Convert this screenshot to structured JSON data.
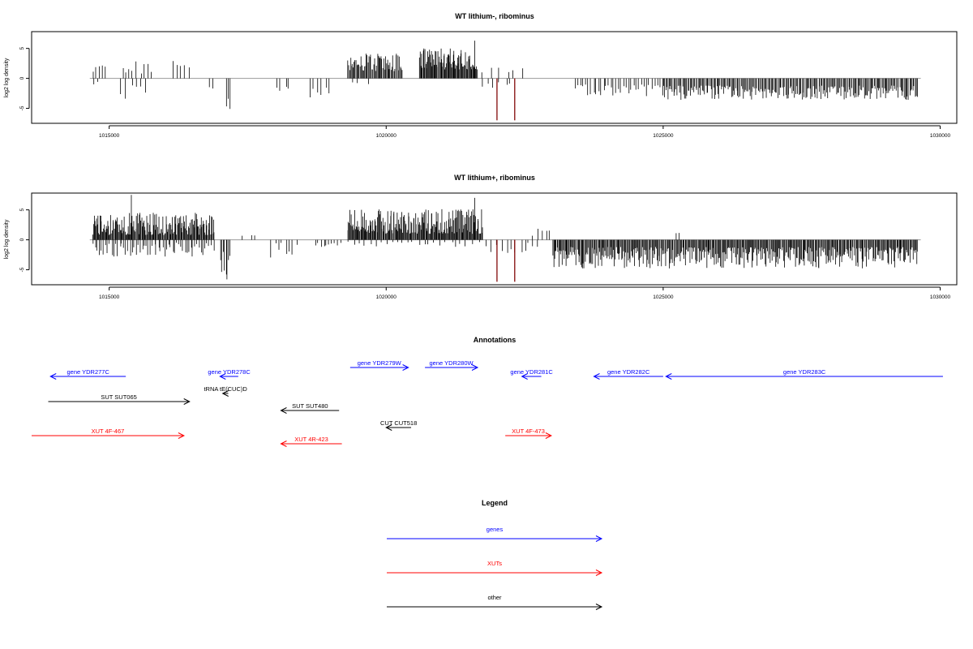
{
  "colors": {
    "gene": "#0000ff",
    "xut": "#ff0000",
    "other": "#000000",
    "bar": "#000000",
    "highlight": "#8b1a1a"
  },
  "chart_data": [
    {
      "type": "bar",
      "title": "WT lithium-, ribominus",
      "ylabel": "log2 log density",
      "xlim": [
        1013600,
        1030300
      ],
      "ylim": [
        -7.5,
        7.8
      ],
      "xticks": [
        1015000,
        1020000,
        1025000,
        1030000
      ],
      "xtick_labels": [
        "1015000",
        "1020000",
        "1025000",
        "1030000"
      ],
      "yticks": [
        -5,
        0,
        5
      ],
      "ytick_labels": [
        "-5",
        "0",
        "5"
      ],
      "baseline_range": [
        1014650,
        1029650
      ],
      "segments": [
        {
          "x0": 1014700,
          "x1": 1014950,
          "n": 5,
          "lo": 1.0,
          "hi": 2.4,
          "sign": 1
        },
        {
          "x0": 1014700,
          "x1": 1014800,
          "n": 2,
          "lo": 0.5,
          "hi": 1.2,
          "sign": -1
        },
        {
          "x0": 1015200,
          "x1": 1015800,
          "n": 9,
          "lo": 0.8,
          "hi": 3.2,
          "sign": 1
        },
        {
          "x0": 1015200,
          "x1": 1015700,
          "n": 6,
          "lo": 1.0,
          "hi": 3.8,
          "sign": -1
        },
        {
          "x0": 1016100,
          "x1": 1016500,
          "n": 5,
          "lo": 1.5,
          "hi": 3.6,
          "sign": 1
        },
        {
          "x0": 1016800,
          "x1": 1016900,
          "n": 2,
          "lo": 1.0,
          "hi": 2.0,
          "sign": -1
        },
        {
          "x0": 1017100,
          "x1": 1017200,
          "n": 3,
          "lo": 3.0,
          "hi": 5.2,
          "sign": -1
        },
        {
          "x0": 1018000,
          "x1": 1018300,
          "n": 4,
          "lo": 1.0,
          "hi": 2.2,
          "sign": -1
        },
        {
          "x0": 1018600,
          "x1": 1019000,
          "n": 6,
          "lo": 1.5,
          "hi": 3.6,
          "sign": -1
        },
        {
          "x0": 1019300,
          "x1": 1020300,
          "n": 60,
          "lo": 1.2,
          "hi": 4.2,
          "sign": 1
        },
        {
          "x0": 1019300,
          "x1": 1019800,
          "n": 3,
          "lo": 0.5,
          "hi": 1.0,
          "sign": -1
        },
        {
          "x0": 1020600,
          "x1": 1021650,
          "n": 85,
          "lo": 1.5,
          "hi": 5.0,
          "sign": 1
        },
        {
          "x0": 1021600,
          "x1": 1021650,
          "n": 1,
          "lo": 6.3,
          "hi": 6.3,
          "sign": 1
        },
        {
          "x0": 1021700,
          "x1": 1022500,
          "n": 6,
          "lo": 1.0,
          "hi": 2.4,
          "sign": 1
        },
        {
          "x0": 1021700,
          "x1": 1022300,
          "n": 6,
          "lo": 0.5,
          "hi": 1.8,
          "sign": -1
        },
        {
          "x0": 1023400,
          "x1": 1025000,
          "n": 35,
          "lo": 1.0,
          "hi": 3.0,
          "sign": -1
        },
        {
          "x0": 1025000,
          "x1": 1029600,
          "n": 230,
          "lo": 1.2,
          "hi": 3.6,
          "sign": -1
        }
      ],
      "highlight_bars": [
        {
          "x": 1022000,
          "value": -7.0
        },
        {
          "x": 1022320,
          "value": -7.0
        }
      ]
    },
    {
      "type": "bar",
      "title": "WT lithium+, ribominus",
      "ylabel": "log2 log density",
      "xlim": [
        1013600,
        1030300
      ],
      "ylim": [
        -7.5,
        7.8
      ],
      "xticks": [
        1015000,
        1020000,
        1025000,
        1030000
      ],
      "xtick_labels": [
        "1015000",
        "1020000",
        "1025000",
        "1030000"
      ],
      "yticks": [
        -5,
        0,
        5
      ],
      "ytick_labels": [
        "-5",
        "0",
        "5"
      ],
      "baseline_range": [
        1014650,
        1029650
      ],
      "segments": [
        {
          "x0": 1014700,
          "x1": 1016900,
          "n": 170,
          "lo": 0.8,
          "hi": 4.5,
          "sign": 1
        },
        {
          "x0": 1015400,
          "x1": 1015450,
          "n": 1,
          "lo": 7.5,
          "hi": 7.5,
          "sign": 1
        },
        {
          "x0": 1014700,
          "x1": 1016900,
          "n": 60,
          "lo": 0.5,
          "hi": 2.8,
          "sign": -1
        },
        {
          "x0": 1017000,
          "x1": 1017200,
          "n": 8,
          "lo": 2.0,
          "hi": 7.0,
          "sign": -1
        },
        {
          "x0": 1017400,
          "x1": 1017700,
          "n": 3,
          "lo": 0.5,
          "hi": 1.8,
          "sign": 1
        },
        {
          "x0": 1017900,
          "x1": 1018400,
          "n": 8,
          "lo": 0.5,
          "hi": 3.5,
          "sign": -1
        },
        {
          "x0": 1018700,
          "x1": 1019200,
          "n": 10,
          "lo": 0.5,
          "hi": 3.5,
          "sign": -1
        },
        {
          "x0": 1019300,
          "x1": 1021750,
          "n": 190,
          "lo": 1.0,
          "hi": 5.2,
          "sign": 1
        },
        {
          "x0": 1021600,
          "x1": 1021650,
          "n": 1,
          "lo": 7.0,
          "hi": 7.0,
          "sign": 1
        },
        {
          "x0": 1019300,
          "x1": 1021700,
          "n": 25,
          "lo": 0.3,
          "hi": 1.2,
          "sign": -1
        },
        {
          "x0": 1021800,
          "x1": 1022800,
          "n": 12,
          "lo": 0.5,
          "hi": 2.5,
          "sign": -1
        },
        {
          "x0": 1022600,
          "x1": 1023000,
          "n": 5,
          "lo": 0.5,
          "hi": 2.0,
          "sign": 1
        },
        {
          "x0": 1023000,
          "x1": 1029600,
          "n": 420,
          "lo": 1.2,
          "hi": 4.8,
          "sign": -1
        },
        {
          "x0": 1025200,
          "x1": 1025300,
          "n": 2,
          "lo": 0.5,
          "hi": 1.2,
          "sign": 1
        }
      ],
      "highlight_bars": [
        {
          "x": 1022000,
          "value": -7.0
        },
        {
          "x": 1022320,
          "value": -7.0
        }
      ]
    }
  ],
  "annotations": {
    "title": "Annotations",
    "xlim": [
      1013600,
      1030300
    ],
    "items": [
      {
        "label": "gene YDR277C",
        "cls": "gene",
        "start": 1015300,
        "end": 1013940,
        "row": 0
      },
      {
        "label": "gene YDR278C",
        "cls": "gene",
        "start": 1017330,
        "end": 1017000,
        "row": 0
      },
      {
        "label": "gene YDR279W",
        "cls": "gene",
        "start": 1019350,
        "end": 1020400,
        "row": -1
      },
      {
        "label": "gene YDR280W",
        "cls": "gene",
        "start": 1020700,
        "end": 1021650,
        "row": -1
      },
      {
        "label": "gene YDR281C",
        "cls": "gene",
        "start": 1022800,
        "end": 1022450,
        "row": 0
      },
      {
        "label": "gene YDR282C",
        "cls": "gene",
        "start": 1025000,
        "end": 1023750,
        "row": 0
      },
      {
        "label": "gene YDR283C",
        "cls": "gene",
        "start": 1030050,
        "end": 1025050,
        "row": 0
      },
      {
        "label": "tRNA tE(CUC)D",
        "cls": "other",
        "start": 1017150,
        "end": 1017050,
        "row": 1
      },
      {
        "label": "SUT SUT065",
        "cls": "other",
        "start": 1013900,
        "end": 1016450,
        "row": 2
      },
      {
        "label": "SUT SUT480",
        "cls": "other",
        "start": 1019150,
        "end": 1018100,
        "row": 3
      },
      {
        "label": "CUT CUT518",
        "cls": "other",
        "start": 1020450,
        "end": 1020000,
        "row": 4
      },
      {
        "label": "XUT 4F-467",
        "cls": "xut",
        "start": 1013600,
        "end": 1016350,
        "row": 5
      },
      {
        "label": "XUT 4R-423",
        "cls": "xut",
        "start": 1019200,
        "end": 1018100,
        "row": 6
      },
      {
        "label": "XUT 4F-473",
        "cls": "xut",
        "start": 1022150,
        "end": 1022980,
        "row": 5
      }
    ]
  },
  "legend": {
    "title": "Legend",
    "items": [
      {
        "label": "genes",
        "cls": "gene"
      },
      {
        "label": "XUTs",
        "cls": "xut"
      },
      {
        "label": "other",
        "cls": "other"
      }
    ]
  }
}
